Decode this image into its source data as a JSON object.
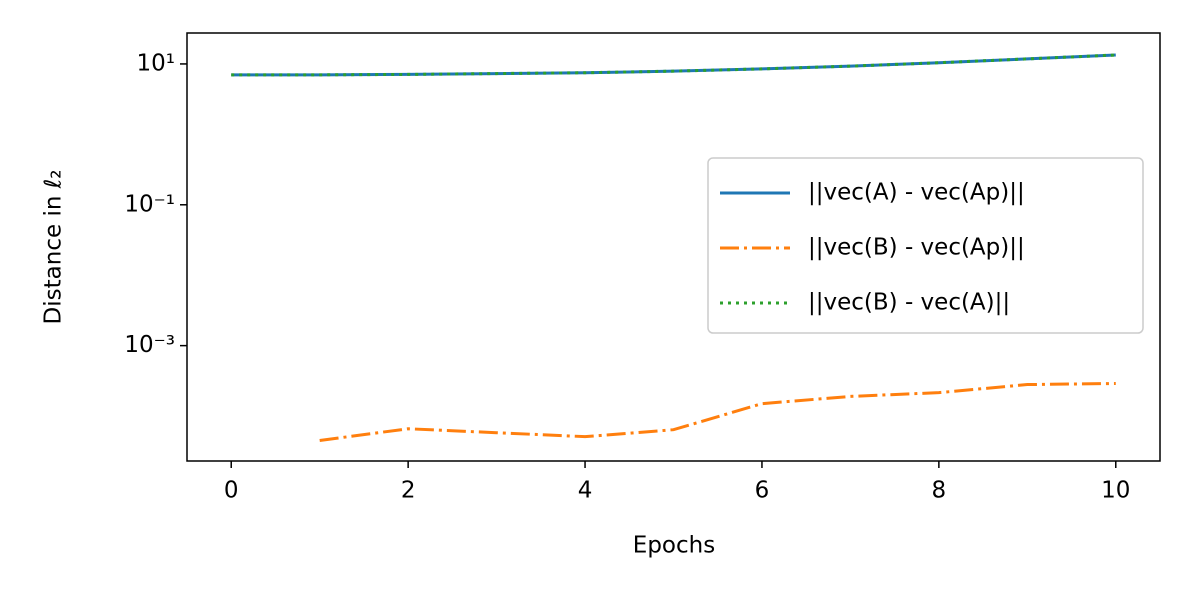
{
  "chart_data": {
    "type": "line",
    "xlabel": "Epochs",
    "ylabel": "Distance in ℓ₂",
    "x": [
      0,
      1,
      2,
      3,
      4,
      5,
      6,
      7,
      8,
      9,
      10
    ],
    "series": [
      {
        "name": "||vec(A) - vec(Ap)||",
        "color": "#1f77b4",
        "linestyle": "solid",
        "values": [
          7.0,
          7.0,
          7.1,
          7.3,
          7.5,
          7.9,
          8.5,
          9.3,
          10.4,
          11.8,
          13.4
        ]
      },
      {
        "name": "||vec(B) - vec(Ap)||",
        "color": "#ff7f0e",
        "linestyle": "dashdot",
        "values": [
          null,
          4.5e-05,
          6.6e-05,
          5.8e-05,
          5.1e-05,
          6.4e-05,
          0.00015,
          0.00019,
          0.000215,
          0.00028,
          0.00029
        ]
      },
      {
        "name": "||vec(B) - vec(A)||",
        "color": "#2ca02c",
        "linestyle": "dotted",
        "values": [
          7.0,
          7.0,
          7.1,
          7.3,
          7.5,
          7.9,
          8.5,
          9.3,
          10.4,
          11.8,
          13.4
        ]
      }
    ],
    "xlim": [
      -0.5,
      10.5
    ],
    "xticks": [
      0,
      2,
      4,
      6,
      8,
      10
    ],
    "ylim": [
      2.3e-05,
      27.5
    ],
    "yscale": "log",
    "yticks": [
      {
        "value": 10,
        "label": "10¹"
      },
      {
        "value": 0.1,
        "label": "10⁻¹"
      },
      {
        "value": 0.001,
        "label": "10⁻³"
      }
    ],
    "grid": false,
    "legend": "center right"
  }
}
